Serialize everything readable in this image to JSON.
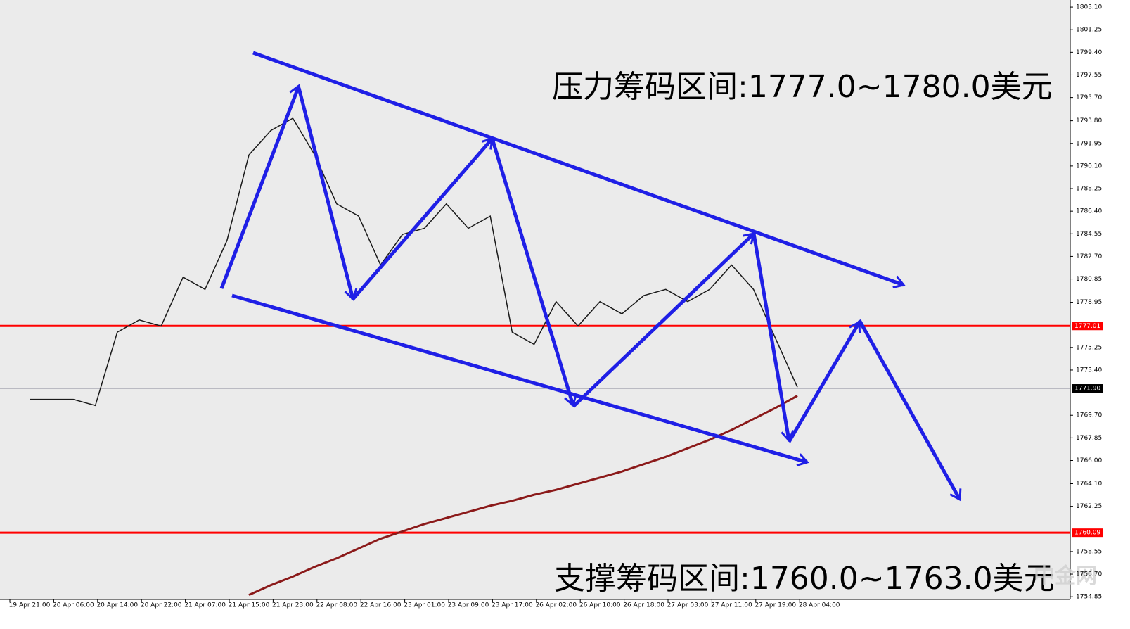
{
  "chart_data": {
    "type": "line",
    "categories": [
      "19 Apr 21:00",
      null,
      "20 Apr 06:00",
      null,
      "20 Apr 14:00",
      null,
      "20 Apr 22:00",
      null,
      "21 Apr 07:00",
      null,
      "21 Apr 15:00",
      null,
      "21 Apr 23:00",
      null,
      "22 Apr 08:00",
      null,
      "22 Apr 16:00",
      null,
      "23 Apr 01:00",
      null,
      "23 Apr 09:00",
      null,
      "23 Apr 17:00",
      null,
      "26 Apr 02:00",
      null,
      "26 Apr 10:00",
      null,
      "26 Apr 18:00",
      null,
      "27 Apr 03:00",
      null,
      "27 Apr 11:00",
      null,
      "27 Apr 19:00",
      null,
      "28 Apr 04:00"
    ],
    "series": [
      {
        "color": "#1a1a1a",
        "values": [
          1771,
          1771,
          1771,
          1770.5,
          1776.5,
          1777.5,
          1777,
          1781,
          1780,
          1784,
          1791,
          1793,
          1794,
          1791,
          1787,
          1786,
          1782,
          1784.5,
          1785,
          1787,
          1785,
          1786,
          1776.5,
          1775.5,
          1779,
          1777,
          1779,
          1778,
          1779.5,
          1780,
          1779,
          1780,
          1782,
          1780,
          1776,
          1772,
          null
        ]
      },
      {
        "color": "#8b1a1a",
        "values": [
          null,
          null,
          null,
          null,
          null,
          null,
          null,
          null,
          null,
          null,
          1755.0,
          1755.8,
          1756.5,
          1757.3,
          1758.0,
          1758.8,
          1759.6,
          1760.2,
          1760.8,
          1761.3,
          1761.8,
          1762.3,
          1762.7,
          1763.2,
          1763.6,
          1764.1,
          1764.6,
          1765.1,
          1765.7,
          1766.3,
          1767.0,
          1767.7,
          1768.5,
          1769.4,
          1770.3,
          1771.3,
          null
        ]
      }
    ],
    "ylim": [
      1754.63,
      1803.68
    ],
    "yticks": [
      {
        "value": 1803.1,
        "label": "1803.10"
      },
      1801.25,
      {
        "value": 1799.4,
        "label": "1799.40"
      },
      1797.55,
      {
        "value": 1795.7,
        "label": "1795.70"
      },
      {
        "value": 1793.8,
        "label": "1793.80"
      },
      1791.95,
      {
        "value": 1790.1,
        "label": "1790.10"
      },
      1788.25,
      {
        "value": 1786.4,
        "label": "1786.40"
      },
      1784.55,
      {
        "value": 1782.7,
        "label": "1782.70"
      },
      1780.85,
      1778.95,
      1775.25,
      {
        "value": 1773.4,
        "label": "1773.40"
      },
      {
        "value": 1769.7,
        "label": "1769.70"
      },
      1767.85,
      {
        "value": 1766.0,
        "label": "1766.00"
      },
      {
        "value": 1764.1,
        "label": "1764.10"
      },
      1762.25,
      1758.55,
      {
        "value": 1756.7,
        "label": "1756.70"
      },
      1754.85
    ],
    "levels": [
      {
        "value": 1777.01,
        "label": "1777.01",
        "color": "#ff0000"
      },
      {
        "value": 1760.09,
        "label": "1760.09",
        "color": "#ff0000"
      },
      {
        "value": 1771.9,
        "label": "1771.90",
        "color": "#000000"
      }
    ],
    "annotations": [
      "压力筹码区间:1777.0~1780.0美元",
      "支撑筹码区间:1760.0~1763.0美元"
    ],
    "watermark": "中金网"
  }
}
